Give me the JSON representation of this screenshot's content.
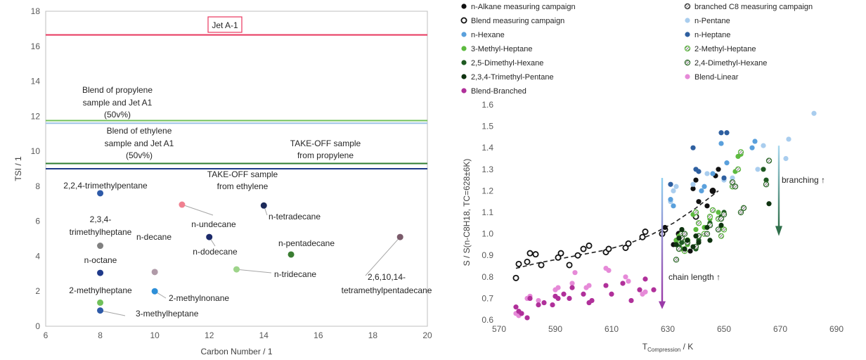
{
  "chart_data": [
    {
      "type": "scatter",
      "xlabel": "Carbon Number / 1",
      "ylabel": "TSI / 1",
      "xlim": [
        6,
        20
      ],
      "ylim": [
        0,
        18
      ],
      "xticks": [
        6,
        8,
        10,
        12,
        14,
        16,
        18,
        20
      ],
      "yticks": [
        0,
        2,
        4,
        6,
        8,
        10,
        12,
        14,
        16,
        18
      ],
      "grid": false,
      "reference_lines": [
        {
          "label": "Jet A-1",
          "y": 16.65,
          "color": "#e8365d"
        },
        {
          "label": "Blend of propylene sample and Jet A1 (50v%)",
          "y": 11.75,
          "color": "#70c05a"
        },
        {
          "label": "Blend of ethylene sample and Jet A1 (50v%)",
          "y": 11.6,
          "color": "#9dc3e6"
        },
        {
          "label": "TAKE-OFF sample from propylene",
          "y": 9.3,
          "color": "#2e7d32"
        },
        {
          "label": "TAKE-OFF sample from ethylene",
          "y": 9.0,
          "color": "#1f3a8a"
        }
      ],
      "annotations": [
        {
          "text": "Jet A-1"
        },
        {
          "text": "Blend of propylene"
        },
        {
          "text": "sample and Jet A1"
        },
        {
          "text": "(50v%)"
        },
        {
          "text": "Blend of ethylene"
        },
        {
          "text": "sample and Jet A1"
        },
        {
          "text": "(50v%)"
        },
        {
          "text": "TAKE-OFF sample"
        },
        {
          "text": "from propylene"
        },
        {
          "text": "TAKE-OFF sample"
        },
        {
          "text": "from ethylene"
        }
      ],
      "points": [
        {
          "label": "2,2,4-trimethylpentane",
          "x": 8,
          "y": 7.6,
          "color": "#2e5aa8"
        },
        {
          "label": "2,3,4-trimethylheptane",
          "x": 8,
          "y": 4.6,
          "color": "#808080"
        },
        {
          "label": "n-octane",
          "x": 8,
          "y": 3.05,
          "color": "#1f3a8a"
        },
        {
          "label": "2-methylheptane",
          "x": 8,
          "y": 1.35,
          "color": "#70c05a"
        },
        {
          "label": "3-methylheptane",
          "x": 8,
          "y": 0.9,
          "color": "#2e5aa8"
        },
        {
          "label": "n-decane",
          "x": 10,
          "y": 3.1,
          "color": "#b09aa8"
        },
        {
          "label": "2-methylnonane",
          "x": 10,
          "y": 2.0,
          "color": "#2e8fd8"
        },
        {
          "label": "n-undecane",
          "x": 11,
          "y": 6.95,
          "color": "#f08090"
        },
        {
          "label": "n-dodecane",
          "x": 12,
          "y": 5.1,
          "color": "#1c2a6a"
        },
        {
          "label": "n-tridecane",
          "x": 13,
          "y": 3.25,
          "color": "#9ed48a"
        },
        {
          "label": "n-tetradecane",
          "x": 14,
          "y": 6.9,
          "color": "#1c2a5a"
        },
        {
          "label": "n-pentadecane",
          "x": 15,
          "y": 4.1,
          "color": "#3a7d32"
        },
        {
          "label": "2,6,10,14-tetramethylpentadecane",
          "x": 19,
          "y": 5.1,
          "color": "#7a5a6a"
        }
      ],
      "point_labels": [
        {
          "text": "2,2,4-trimethylpentane"
        },
        {
          "text": "2,3,4-"
        },
        {
          "text": "trimethylheptane"
        },
        {
          "text": "n-octane"
        },
        {
          "text": "2-methylheptane"
        },
        {
          "text": "3-methylheptane"
        },
        {
          "text": "n-decane"
        },
        {
          "text": "2-methylnonane"
        },
        {
          "text": "n-undecane"
        },
        {
          "text": "n-dodecane"
        },
        {
          "text": "n-tridecane"
        },
        {
          "text": "n-tetradecane"
        },
        {
          "text": "n-pentadecane"
        },
        {
          "text": "2,6,10,14-"
        },
        {
          "text": "tetramethylpentadecane"
        }
      ]
    },
    {
      "type": "scatter",
      "xlabel_main": "T",
      "xlabel_sub": "Compression",
      "xlabel_unit": " / K",
      "ylabel": "S / S(n-C8H18, TC=628±6K)",
      "xlim": [
        570,
        690
      ],
      "ylim": [
        0.6,
        1.6
      ],
      "xticks": [
        570,
        590,
        610,
        630,
        650,
        670,
        690
      ],
      "yticks": [
        "0.6",
        "0.7",
        "0.8",
        "0.9",
        "1.0",
        "1.1",
        "1.2",
        "1.3",
        "1.4",
        "1.5",
        "1.6"
      ],
      "grid": false,
      "legend": [
        {
          "name": "n-Alkane measuring campaign",
          "fill": "#111111",
          "stroke": "#111111",
          "pattern": "solid"
        },
        {
          "name": "branched C8 measuring campaign",
          "fill": "#bbbbbb",
          "stroke": "#333333",
          "pattern": "hatch"
        },
        {
          "name": "Blend measuring campaign",
          "fill": "#ffffff",
          "stroke": "#111111",
          "pattern": "ring"
        },
        {
          "name": "n-Pentane",
          "fill": "#a9cdee",
          "stroke": "#a9cdee",
          "pattern": "solid"
        },
        {
          "name": "n-Hexane",
          "fill": "#5aa0dc",
          "stroke": "#5aa0dc",
          "pattern": "solid"
        },
        {
          "name": "n-Heptane",
          "fill": "#2e5fa0",
          "stroke": "#2e5fa0",
          "pattern": "solid"
        },
        {
          "name": "3-Methyl-Heptane",
          "fill": "#5dba3f",
          "stroke": "#5dba3f",
          "pattern": "solid"
        },
        {
          "name": "2-Methyl-Heptane",
          "fill": "#a8dc90",
          "stroke": "#5dba3f",
          "pattern": "hatch"
        },
        {
          "name": "2,5-Dimethyl-Hexane",
          "fill": "#1f5a22",
          "stroke": "#1f5a22",
          "pattern": "solid"
        },
        {
          "name": "2,4-Dimethyl-Hexane",
          "fill": "#7fbf6a",
          "stroke": "#2f6f2a",
          "pattern": "hatch"
        },
        {
          "name": "2,3,4-Trimethyl-Pentane",
          "fill": "#0f3310",
          "stroke": "#0f3310",
          "pattern": "solid"
        },
        {
          "name": "Blend-Linear",
          "fill": "#e68ad8",
          "stroke": "#e68ad8",
          "pattern": "solid"
        },
        {
          "name": "Blend-Branched",
          "fill": "#b0309a",
          "stroke": "#b0309a",
          "pattern": "solid"
        }
      ],
      "trend_line": {
        "x": [
          576,
          584,
          592,
          600,
          608,
          616,
          624,
          632,
          640,
          648
        ],
        "y": [
          0.84,
          0.865,
          0.885,
          0.905,
          0.925,
          0.955,
          0.995,
          1.05,
          1.12,
          1.2
        ]
      },
      "annotations": [
        {
          "text": "chain length",
          "arrow": "↑"
        },
        {
          "text": "branching",
          "arrow": "↑"
        }
      ],
      "series": [
        {
          "name": "Blend measuring campaign",
          "style": "ring",
          "color": "#111111",
          "x": [
            576,
            577,
            580,
            581,
            583,
            585,
            591,
            592,
            595,
            598,
            600,
            602,
            608,
            609,
            615,
            616,
            621,
            622,
            628,
            629,
            634,
            640,
            646
          ],
          "y": [
            0.795,
            0.86,
            0.87,
            0.91,
            0.905,
            0.855,
            0.89,
            0.91,
            0.855,
            0.9,
            0.93,
            0.945,
            0.915,
            0.93,
            0.935,
            0.955,
            0.985,
            1.01,
            1.0,
            1.02,
            1.0,
            1.08,
            1.2
          ]
        },
        {
          "name": "n-Alkane measuring campaign",
          "style": "solid",
          "color": "#111111",
          "x": [
            629,
            632,
            633,
            634,
            635,
            638,
            639,
            640,
            641,
            644,
            646,
            647,
            648
          ],
          "y": [
            1.03,
            0.95,
            0.97,
            1.0,
            0.98,
            0.92,
            1.21,
            1.25,
            1.15,
            1.13,
            1.2,
            1.27,
            1.3
          ]
        },
        {
          "name": "n-Pentane",
          "style": "solid",
          "color": "#a9cdee",
          "x": [
            631,
            632,
            633,
            639,
            644,
            650,
            653,
            662,
            664,
            672,
            673,
            682
          ],
          "y": [
            1.15,
            1.2,
            1.22,
            1.23,
            1.28,
            1.25,
            1.26,
            1.3,
            1.41,
            1.35,
            1.44,
            1.56
          ]
        },
        {
          "name": "n-Hexane",
          "style": "solid",
          "color": "#5aa0dc",
          "x": [
            631,
            632,
            642,
            643,
            646,
            649,
            651,
            660,
            661
          ],
          "y": [
            1.16,
            1.13,
            1.2,
            1.22,
            1.28,
            1.42,
            1.33,
            1.4,
            1.43
          ]
        },
        {
          "name": "n-Heptane",
          "style": "solid",
          "color": "#2e5fa0",
          "x": [
            631,
            639,
            640,
            641,
            649,
            650,
            651
          ],
          "y": [
            1.23,
            1.4,
            1.3,
            1.29,
            1.47,
            1.26,
            1.47
          ]
        },
        {
          "name": "3-Methyl-Heptane",
          "style": "solid",
          "color": "#5dba3f",
          "x": [
            633,
            634,
            635,
            636,
            637,
            639,
            640,
            643,
            645,
            648,
            649,
            654,
            655,
            656
          ],
          "y": [
            0.97,
            0.99,
            0.93,
            1.0,
            0.95,
            1.09,
            1.02,
            1.03,
            1.07,
            1.1,
            1.03,
            1.29,
            1.36,
            1.37
          ]
        },
        {
          "name": "2-Methyl-Heptane",
          "style": "hatch",
          "color": "#5dba3f",
          "x": [
            634,
            635,
            636,
            637,
            640,
            641,
            643,
            645,
            646,
            648,
            649,
            650,
            653,
            655,
            656
          ],
          "y": [
            0.95,
            1.0,
            0.92,
            0.97,
            1.1,
            1.05,
            1.0,
            1.08,
            1.11,
            1.07,
            0.99,
            1.02,
            1.22,
            1.3,
            1.38
          ]
        },
        {
          "name": "2,5-Dimethyl-Hexane",
          "style": "solid",
          "color": "#1f5a22",
          "x": [
            634,
            635,
            636,
            640,
            641,
            644,
            645,
            649,
            650,
            664,
            665
          ],
          "y": [
            0.94,
            0.96,
            1.0,
            0.93,
            0.97,
            1.0,
            1.05,
            1.08,
            1.1,
            1.3,
            1.25
          ]
        },
        {
          "name": "2,4-Dimethyl-Hexane",
          "style": "hatch",
          "color": "#2f6f2a",
          "x": [
            633,
            634,
            635,
            636,
            637,
            640,
            641,
            644,
            645,
            648,
            649,
            650,
            653,
            654,
            656,
            657,
            665,
            666
          ],
          "y": [
            0.88,
            0.93,
            0.98,
            1.0,
            0.96,
            0.94,
            0.99,
            1.0,
            1.04,
            1.02,
            1.07,
            1.09,
            1.24,
            1.22,
            1.1,
            1.12,
            1.23,
            1.34
          ]
        },
        {
          "name": "2,3,4-Trimethyl-Pentane",
          "style": "solid",
          "color": "#0f3310",
          "x": [
            633,
            634,
            635,
            636,
            637,
            639,
            640,
            641,
            644,
            645,
            649,
            666
          ],
          "y": [
            0.95,
            0.98,
            1.02,
            0.93,
            0.97,
            0.94,
            0.99,
            0.96,
            1.03,
            0.97,
            1.04,
            1.14
          ]
        },
        {
          "name": "Blend-Linear",
          "style": "solid",
          "color": "#e68ad8",
          "x": [
            576,
            577,
            580,
            581,
            584,
            590,
            591,
            596,
            597,
            601,
            602,
            608,
            609,
            615,
            616,
            621,
            622
          ],
          "y": [
            0.63,
            0.62,
            0.7,
            0.71,
            0.69,
            0.74,
            0.75,
            0.77,
            0.82,
            0.75,
            0.76,
            0.84,
            0.83,
            0.8,
            0.78,
            0.72,
            0.73
          ]
        },
        {
          "name": "Blend-Branched",
          "style": "solid",
          "color": "#b0309a",
          "x": [
            576,
            577,
            578,
            580,
            581,
            584,
            586,
            589,
            590,
            591,
            593,
            595,
            596,
            600,
            602,
            603,
            608,
            610,
            614,
            617,
            620,
            622,
            625
          ],
          "y": [
            0.66,
            0.64,
            0.63,
            0.61,
            0.7,
            0.67,
            0.68,
            0.67,
            0.71,
            0.7,
            0.72,
            0.7,
            0.75,
            0.72,
            0.68,
            0.69,
            0.76,
            0.72,
            0.77,
            0.69,
            0.74,
            0.79,
            0.74
          ]
        }
      ]
    }
  ]
}
